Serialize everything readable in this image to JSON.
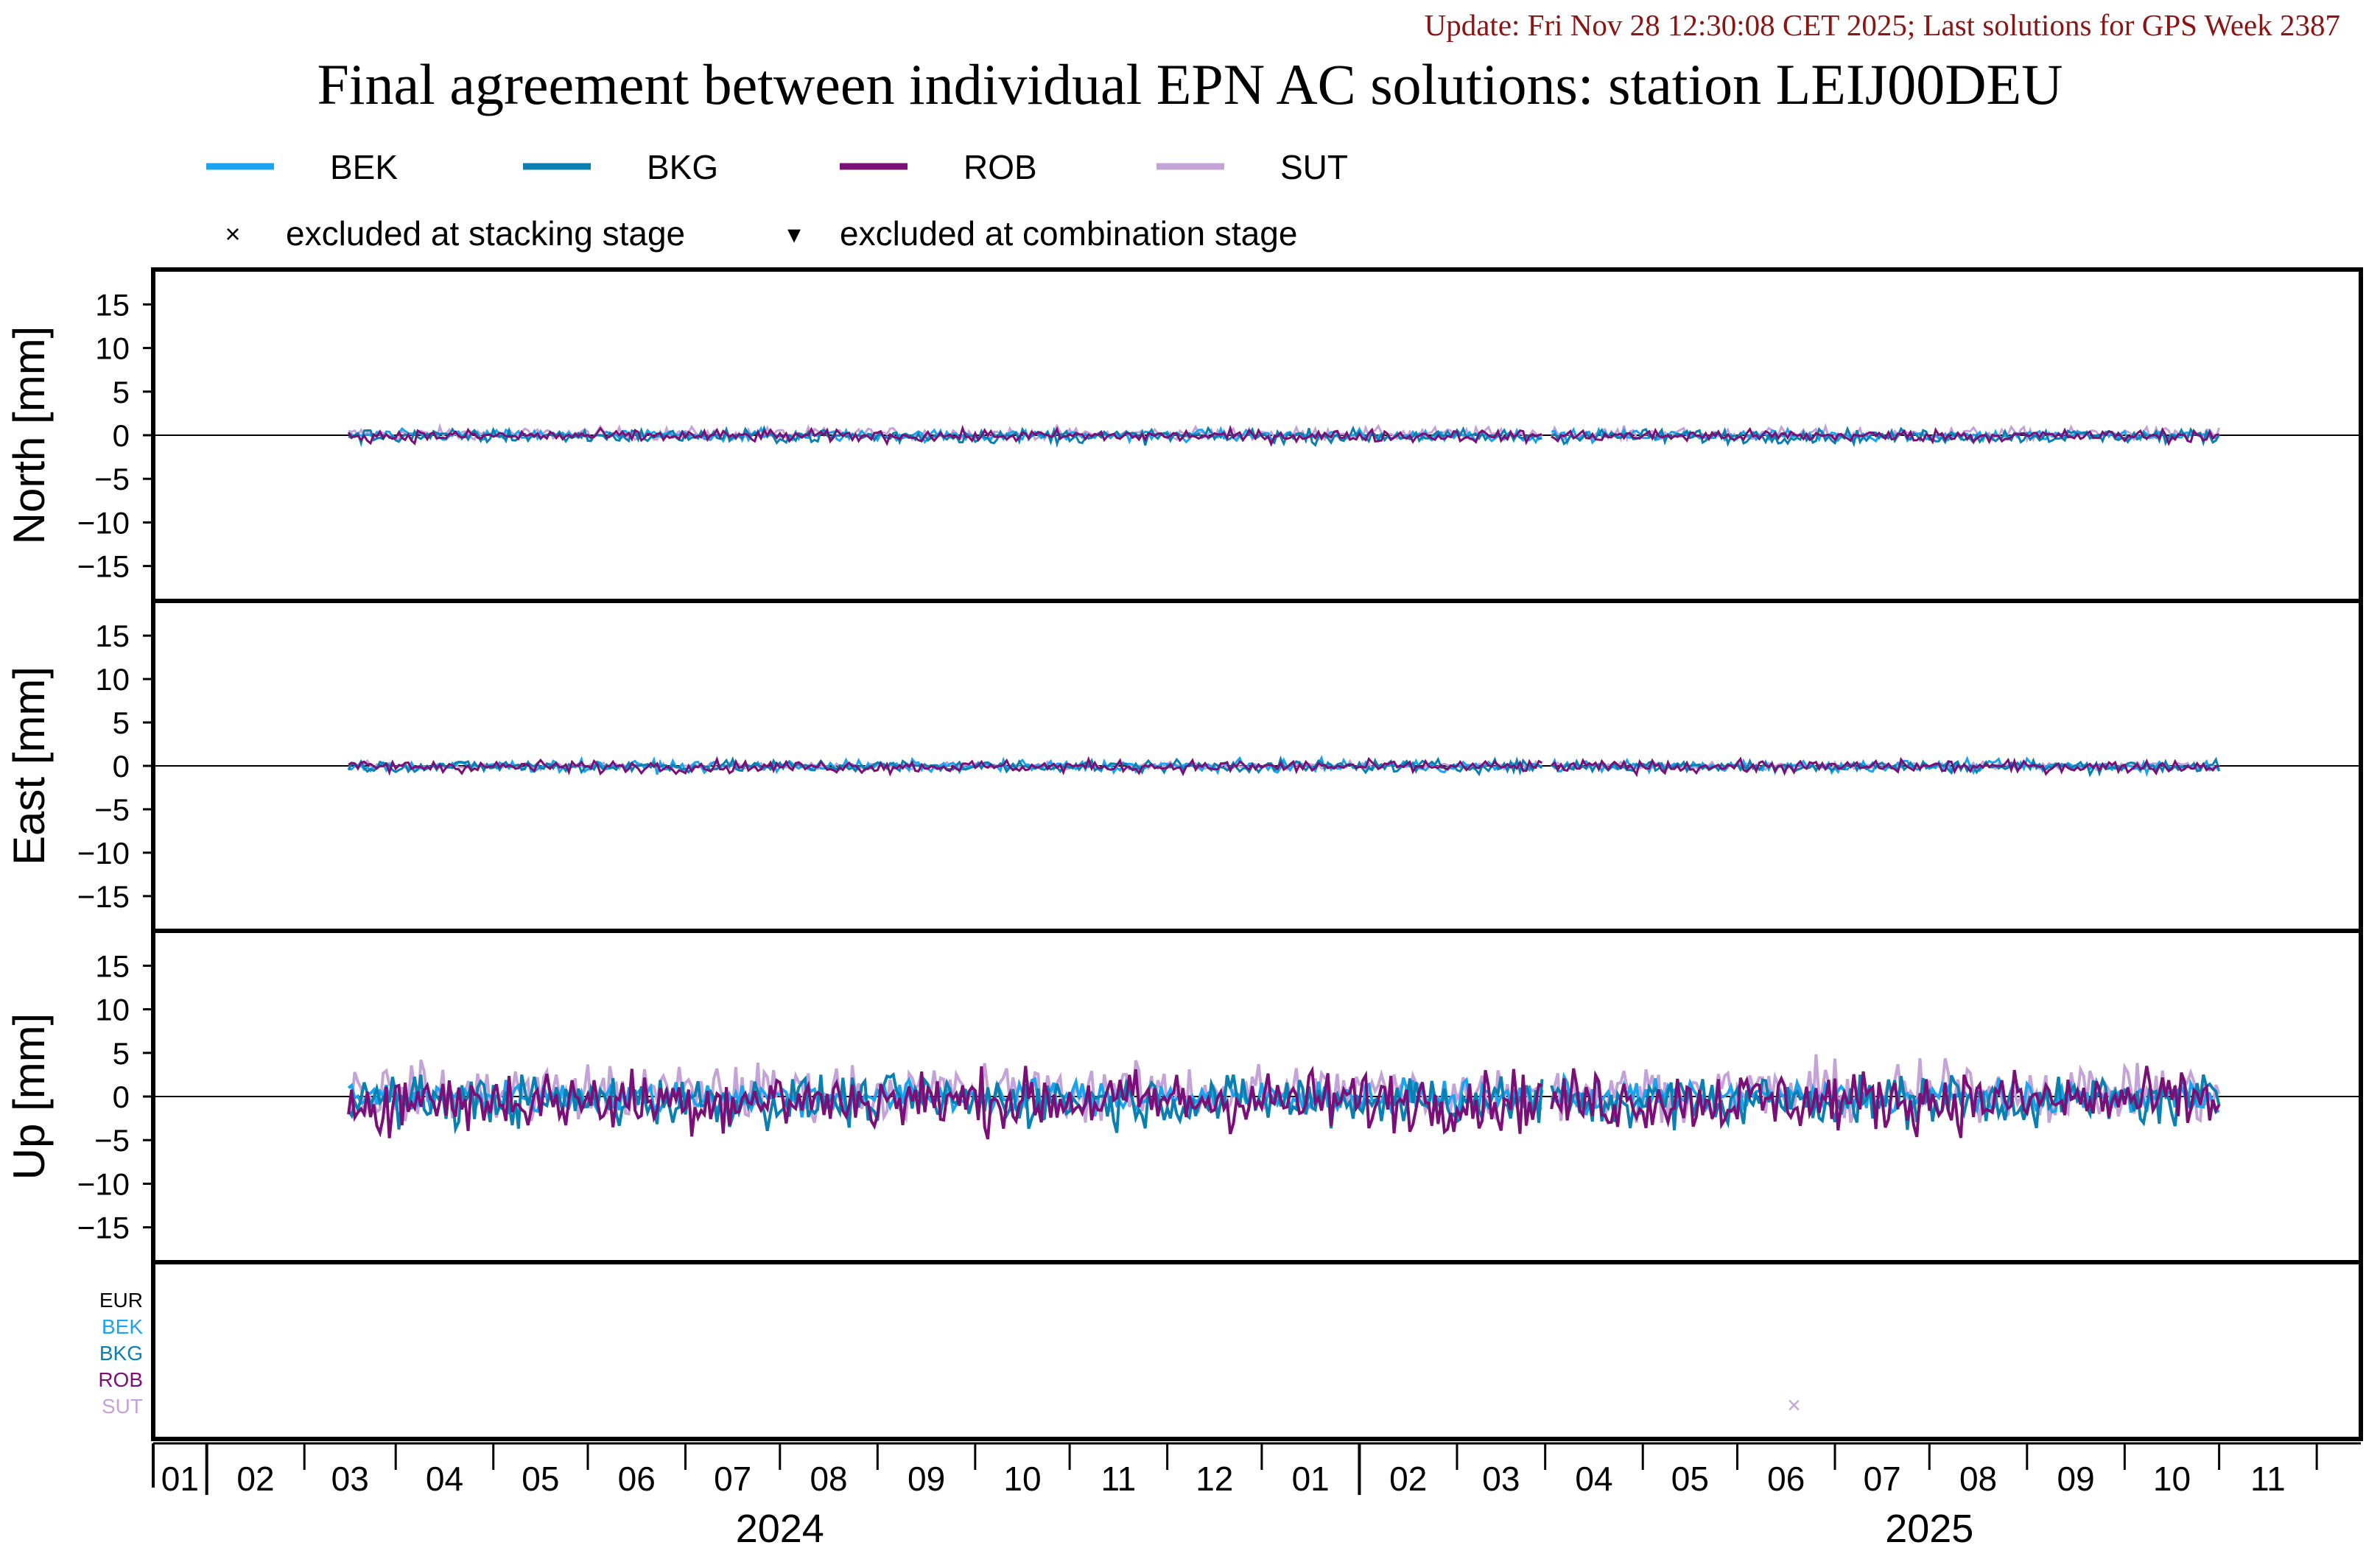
{
  "update_text": "Update: Fri Nov 28 12:30:08 CET 2025; Last solutions for GPS Week 2387",
  "chart_data": {
    "type": "line",
    "title": "Final agreement between individual EPN AC solutions: station LEIJ00DEU",
    "legend": {
      "placement": "top",
      "entries": [
        {
          "name": "BEK",
          "color": "#1aa3ee"
        },
        {
          "name": "BKG",
          "color": "#0a7fb0"
        },
        {
          "name": "ROB",
          "color": "#7a0f78"
        },
        {
          "name": "SUT",
          "color": "#c4a3d8"
        }
      ],
      "markers": [
        {
          "symbol": "×",
          "label": "excluded at stacking stage"
        },
        {
          "symbol": "▾",
          "label": "excluded at combination stage"
        }
      ]
    },
    "x_axis": {
      "range": [
        "2023-12-15",
        "2025-11-15"
      ],
      "month_ticks": [
        "2024-01-01",
        "2024-02-01",
        "2024-03-01",
        "2024-04-01",
        "2024-05-01",
        "2024-06-01",
        "2024-07-01",
        "2024-08-01",
        "2024-09-01",
        "2024-10-01",
        "2024-11-01",
        "2024-12-01",
        "2025-01-01",
        "2025-02-01",
        "2025-03-01",
        "2025-04-01",
        "2025-05-01",
        "2025-06-01",
        "2025-07-01",
        "2025-08-01",
        "2025-09-01",
        "2025-10-01",
        "2025-11-01"
      ],
      "month_labels": [
        "01",
        "02",
        "03",
        "04",
        "05",
        "06",
        "07",
        "08",
        "09",
        "10",
        "11",
        "12",
        "01",
        "02",
        "03",
        "04",
        "05",
        "06",
        "07",
        "08",
        "09",
        "10",
        "11"
      ],
      "year_labels": [
        {
          "label": "2024",
          "center": "2024-07-01"
        },
        {
          "label": "2025",
          "center": "2025-07-01"
        }
      ]
    },
    "data_span": {
      "start": "2024-02-15",
      "end": "2025-10-01",
      "gap": [
        "2025-02-28",
        "2025-03-03"
      ]
    },
    "panels": [
      {
        "ylabel": "North [mm]",
        "ylim": [
          -19,
          19
        ],
        "yticks": [
          -15,
          -10,
          -5,
          0,
          5,
          10,
          15
        ],
        "approx_range": {
          "BEK": [
            -1.2,
            1.0
          ],
          "BKG": [
            -1.5,
            0.8
          ],
          "ROB": [
            -1.3,
            0.8
          ],
          "SUT": [
            -0.5,
            1.4
          ]
        }
      },
      {
        "ylabel": "East [mm]",
        "ylim": [
          -19,
          19
        ],
        "yticks": [
          -15,
          -10,
          -5,
          0,
          5,
          10,
          15
        ],
        "approx_range": {
          "BEK": [
            -1.2,
            1.0
          ],
          "BKG": [
            -1.3,
            1.0
          ],
          "ROB": [
            -1.3,
            0.8
          ],
          "SUT": [
            -0.8,
            0.8
          ]
        }
      },
      {
        "ylabel": "Up [mm]",
        "ylim": [
          -19,
          19
        ],
        "yticks": [
          -15,
          -10,
          -5,
          0,
          5,
          10,
          15
        ],
        "approx_range": {
          "BEK": [
            -3.5,
            3.0
          ],
          "BKG": [
            -5.5,
            2.5
          ],
          "ROB": [
            -6.5,
            3.5
          ],
          "SUT": [
            -3.0,
            6.0
          ]
        }
      }
    ],
    "exclusion_panel": {
      "rows": [
        {
          "label": "EUR",
          "color": "#000000"
        },
        {
          "label": "BEK",
          "color": "#1aa3ee"
        },
        {
          "label": "BKG",
          "color": "#0a7fb0"
        },
        {
          "label": "ROB",
          "color": "#7a0f78"
        },
        {
          "label": "SUT",
          "color": "#c4a3d8"
        }
      ],
      "markers": [
        {
          "row": "SUT",
          "date": "2025-05-19",
          "symbol": "×"
        }
      ]
    },
    "grid": false
  }
}
